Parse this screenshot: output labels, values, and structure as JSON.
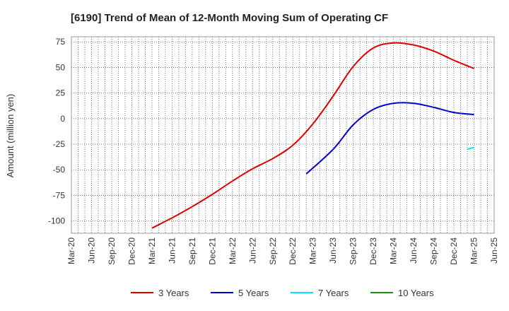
{
  "chart_data": {
    "type": "line",
    "title": "[6190]  Trend of Mean of 12-Month Moving Sum of Operating CF",
    "xlabel": "",
    "ylabel": "Amount (million yen)",
    "ylim": [
      -112,
      80
    ],
    "yticks": [
      75,
      50,
      25,
      0,
      -25,
      -50,
      -75,
      -100
    ],
    "x_ticks": [
      "Mar-20",
      "Jun-20",
      "Sep-20",
      "Dec-20",
      "Mar-21",
      "Jun-21",
      "Sep-21",
      "Dec-21",
      "Mar-22",
      "Jun-22",
      "Sep-22",
      "Dec-22",
      "Mar-23",
      "Jun-23",
      "Sep-23",
      "Dec-23",
      "Mar-24",
      "Jun-24",
      "Sep-24",
      "Dec-24",
      "Mar-25",
      "Jun-25"
    ],
    "grid": true,
    "legend_position": "bottom",
    "series": [
      {
        "name": "3 Years",
        "color": "#e00000",
        "points": [
          {
            "x": "Mar-21",
            "y": -107
          },
          {
            "x": "Jun-21",
            "y": -97
          },
          {
            "x": "Sep-21",
            "y": -86
          },
          {
            "x": "Dec-21",
            "y": -74
          },
          {
            "x": "Mar-22",
            "y": -61
          },
          {
            "x": "Jun-22",
            "y": -49
          },
          {
            "x": "Sep-22",
            "y": -39
          },
          {
            "x": "Dec-22",
            "y": -26
          },
          {
            "x": "Mar-23",
            "y": -5
          },
          {
            "x": "Jun-23",
            "y": 22
          },
          {
            "x": "Sep-23",
            "y": 51
          },
          {
            "x": "Dec-23",
            "y": 69
          },
          {
            "x": "Mar-24",
            "y": 74
          },
          {
            "x": "Jun-24",
            "y": 72
          },
          {
            "x": "Sep-24",
            "y": 66
          },
          {
            "x": "Dec-24",
            "y": 57
          },
          {
            "x": "Mar-25",
            "y": 49
          }
        ]
      },
      {
        "name": "5 Years",
        "color": "#0000cc",
        "points": [
          {
            "x": "Feb-23",
            "y": -54
          },
          {
            "x": "Jun-23",
            "y": -30
          },
          {
            "x": "Sep-23",
            "y": -6
          },
          {
            "x": "Dec-23",
            "y": 9
          },
          {
            "x": "Mar-24",
            "y": 15
          },
          {
            "x": "Jun-24",
            "y": 15
          },
          {
            "x": "Sep-24",
            "y": 11
          },
          {
            "x": "Dec-24",
            "y": 6
          },
          {
            "x": "Mar-25",
            "y": 4
          }
        ]
      },
      {
        "name": "7 Years",
        "color": "#00e5ee",
        "points": [
          {
            "x": "Feb-25",
            "y": -30
          },
          {
            "x": "Mar-25",
            "y": -28
          }
        ]
      },
      {
        "name": "10 Years",
        "color": "#228b22",
        "points": []
      }
    ]
  }
}
